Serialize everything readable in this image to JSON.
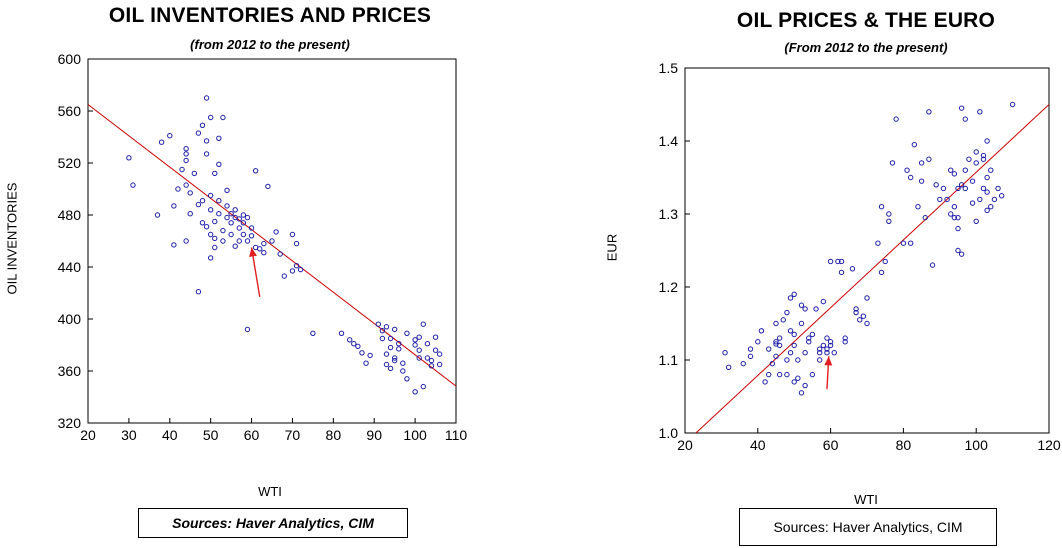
{
  "chart_data": [
    {
      "type": "scatter",
      "title": "OIL INVENTORIES AND PRICES",
      "subtitle": "(from 2012 to the present)",
      "xlabel": "WTI",
      "ylabel": "OIL INVENTORIES",
      "xlim": [
        20,
        110
      ],
      "ylim": [
        320,
        600
      ],
      "xticks": [
        20,
        30,
        40,
        50,
        60,
        70,
        80,
        90,
        100,
        110
      ],
      "yticks": [
        320,
        360,
        400,
        440,
        480,
        520,
        560,
        600
      ],
      "source": "Sources:  Haver Analytics, CIM",
      "marker_color": "#1f1fa8",
      "fit_line_color": "#cc0000",
      "arrow_color": "#e02020",
      "fit_line": [
        [
          20,
          565
        ],
        [
          111,
          346
        ]
      ],
      "arrow": {
        "from": [
          62,
          417
        ],
        "to": [
          60,
          455
        ]
      },
      "points": [
        [
          30,
          524
        ],
        [
          31,
          503
        ],
        [
          37,
          480
        ],
        [
          38,
          536
        ],
        [
          40,
          541
        ],
        [
          41,
          487
        ],
        [
          41,
          457
        ],
        [
          42,
          500
        ],
        [
          43,
          515
        ],
        [
          44,
          522
        ],
        [
          44,
          527
        ],
        [
          44,
          531
        ],
        [
          44,
          503
        ],
        [
          44,
          460
        ],
        [
          45,
          481
        ],
        [
          45,
          497
        ],
        [
          46,
          512
        ],
        [
          47,
          421
        ],
        [
          47,
          543
        ],
        [
          47,
          488
        ],
        [
          48,
          474
        ],
        [
          48,
          491
        ],
        [
          48,
          549
        ],
        [
          49,
          570
        ],
        [
          49,
          527
        ],
        [
          49,
          471
        ],
        [
          49,
          537
        ],
        [
          50,
          555
        ],
        [
          50,
          495
        ],
        [
          50,
          484
        ],
        [
          50,
          465
        ],
        [
          50,
          447
        ],
        [
          51,
          512
        ],
        [
          51,
          455
        ],
        [
          51,
          475
        ],
        [
          51,
          462
        ],
        [
          52,
          519
        ],
        [
          52,
          539
        ],
        [
          52,
          481
        ],
        [
          52,
          491
        ],
        [
          53,
          555
        ],
        [
          53,
          468
        ],
        [
          53,
          460
        ],
        [
          54,
          478
        ],
        [
          54,
          499
        ],
        [
          54,
          487
        ],
        [
          55,
          481
        ],
        [
          55,
          474
        ],
        [
          55,
          465
        ],
        [
          56,
          456
        ],
        [
          56,
          478
        ],
        [
          56,
          484
        ],
        [
          57,
          470
        ],
        [
          57,
          477
        ],
        [
          57,
          460
        ],
        [
          58,
          465
        ],
        [
          58,
          480
        ],
        [
          58,
          474
        ],
        [
          59,
          478
        ],
        [
          59,
          460
        ],
        [
          59,
          392
        ],
        [
          60,
          464
        ],
        [
          60,
          470
        ],
        [
          61,
          514
        ],
        [
          61,
          455
        ],
        [
          62,
          454
        ],
        [
          63,
          458
        ],
        [
          63,
          451
        ],
        [
          64,
          502
        ],
        [
          65,
          460
        ],
        [
          66,
          467
        ],
        [
          67,
          450
        ],
        [
          68,
          433
        ],
        [
          70,
          465
        ],
        [
          70,
          437
        ],
        [
          71,
          458
        ],
        [
          71,
          441
        ],
        [
          72,
          438
        ],
        [
          75,
          389
        ],
        [
          82,
          389
        ],
        [
          84,
          384
        ],
        [
          85,
          381
        ],
        [
          86,
          379
        ],
        [
          87,
          374
        ],
        [
          88,
          366
        ],
        [
          89,
          372
        ],
        [
          91,
          396
        ],
        [
          92,
          391
        ],
        [
          92,
          385
        ],
        [
          93,
          394
        ],
        [
          93,
          373
        ],
        [
          93,
          365
        ],
        [
          94,
          385
        ],
        [
          94,
          362
        ],
        [
          94,
          378
        ],
        [
          95,
          392
        ],
        [
          95,
          370
        ],
        [
          95,
          368
        ],
        [
          96,
          381
        ],
        [
          96,
          377
        ],
        [
          97,
          360
        ],
        [
          97,
          366
        ],
        [
          98,
          389
        ],
        [
          98,
          354
        ],
        [
          100,
          384
        ],
        [
          100,
          380
        ],
        [
          100,
          344
        ],
        [
          101,
          376
        ],
        [
          101,
          370
        ],
        [
          101,
          386
        ],
        [
          102,
          396
        ],
        [
          102,
          348
        ],
        [
          103,
          381
        ],
        [
          103,
          370
        ],
        [
          104,
          364
        ],
        [
          104,
          368
        ],
        [
          105,
          386
        ],
        [
          105,
          376
        ],
        [
          106,
          373
        ],
        [
          106,
          365
        ]
      ]
    },
    {
      "type": "scatter",
      "title": "OIL PRICES & THE EURO",
      "subtitle": "(From 2012 to the present)",
      "xlabel": "WTI",
      "ylabel": "EUR",
      "xlim": [
        20,
        120
      ],
      "ylim": [
        1.0,
        1.5
      ],
      "xticks": [
        20,
        40,
        60,
        80,
        100,
        120
      ],
      "yticks": [
        1.0,
        1.1,
        1.2,
        1.3,
        1.4,
        1.5
      ],
      "source": "Sources:  Haver Analytics, CIM",
      "marker_color": "#1f1fa8",
      "fit_line_color": "#cc0000",
      "arrow_color": "#e02020",
      "fit_line": [
        [
          23,
          1.0
        ],
        [
          120,
          1.45
        ]
      ],
      "arrow": {
        "from": [
          59,
          1.06
        ],
        "to": [
          59.5,
          1.105
        ]
      },
      "points": [
        [
          31,
          1.11
        ],
        [
          32,
          1.09
        ],
        [
          36,
          1.095
        ],
        [
          38,
          1.105
        ],
        [
          38,
          1.115
        ],
        [
          40,
          1.125
        ],
        [
          41,
          1.14
        ],
        [
          42,
          1.07
        ],
        [
          43,
          1.115
        ],
        [
          43,
          1.08
        ],
        [
          44,
          1.095
        ],
        [
          45,
          1.125
        ],
        [
          45,
          1.15
        ],
        [
          45,
          1.105
        ],
        [
          45,
          1.122
        ],
        [
          46,
          1.13
        ],
        [
          46,
          1.08
        ],
        [
          46,
          1.12
        ],
        [
          47,
          1.155
        ],
        [
          48,
          1.165
        ],
        [
          48,
          1.08
        ],
        [
          48,
          1.1
        ],
        [
          49,
          1.14
        ],
        [
          49,
          1.185
        ],
        [
          49,
          1.11
        ],
        [
          50,
          1.07
        ],
        [
          50,
          1.19
        ],
        [
          50,
          1.12
        ],
        [
          50,
          1.135
        ],
        [
          51,
          1.1
        ],
        [
          51,
          1.075
        ],
        [
          52,
          1.055
        ],
        [
          52,
          1.15
        ],
        [
          52,
          1.175
        ],
        [
          53,
          1.11
        ],
        [
          53,
          1.065
        ],
        [
          53,
          1.17
        ],
        [
          54,
          1.125
        ],
        [
          54,
          1.13
        ],
        [
          55,
          1.08
        ],
        [
          55,
          1.135
        ],
        [
          56,
          1.17
        ],
        [
          57,
          1.115
        ],
        [
          57,
          1.1
        ],
        [
          57,
          1.11
        ],
        [
          58,
          1.18
        ],
        [
          58,
          1.12
        ],
        [
          59,
          1.11
        ],
        [
          59,
          1.115
        ],
        [
          59,
          1.13
        ],
        [
          60,
          1.12
        ],
        [
          60,
          1.125
        ],
        [
          61,
          1.11
        ],
        [
          60,
          1.235
        ],
        [
          62,
          1.235
        ],
        [
          63,
          1.22
        ],
        [
          63,
          1.235
        ],
        [
          64,
          1.125
        ],
        [
          64,
          1.13
        ],
        [
          66,
          1.225
        ],
        [
          67,
          1.165
        ],
        [
          67,
          1.17
        ],
        [
          68,
          1.155
        ],
        [
          69,
          1.16
        ],
        [
          70,
          1.15
        ],
        [
          70,
          1.185
        ],
        [
          73,
          1.26
        ],
        [
          74,
          1.31
        ],
        [
          74,
          1.22
        ],
        [
          75,
          1.235
        ],
        [
          76,
          1.29
        ],
        [
          76,
          1.3
        ],
        [
          77,
          1.37
        ],
        [
          78,
          1.43
        ],
        [
          80,
          1.26
        ],
        [
          81,
          1.36
        ],
        [
          82,
          1.35
        ],
        [
          82,
          1.26
        ],
        [
          83,
          1.395
        ],
        [
          84,
          1.31
        ],
        [
          85,
          1.37
        ],
        [
          85,
          1.345
        ],
        [
          86,
          1.295
        ],
        [
          87,
          1.375
        ],
        [
          87,
          1.44
        ],
        [
          88,
          1.23
        ],
        [
          89,
          1.34
        ],
        [
          90,
          1.32
        ],
        [
          91,
          1.335
        ],
        [
          92,
          1.32
        ],
        [
          93,
          1.3
        ],
        [
          93,
          1.36
        ],
        [
          94,
          1.295
        ],
        [
          94,
          1.31
        ],
        [
          94,
          1.355
        ],
        [
          95,
          1.28
        ],
        [
          95,
          1.295
        ],
        [
          95,
          1.335
        ],
        [
          96,
          1.34
        ],
        [
          96,
          1.445
        ],
        [
          97,
          1.43
        ],
        [
          97,
          1.335
        ],
        [
          97,
          1.36
        ],
        [
          98,
          1.375
        ],
        [
          99,
          1.345
        ],
        [
          99,
          1.315
        ],
        [
          100,
          1.29
        ],
        [
          100,
          1.37
        ],
        [
          100,
          1.385
        ],
        [
          101,
          1.44
        ],
        [
          101,
          1.32
        ],
        [
          102,
          1.38
        ],
        [
          102,
          1.375
        ],
        [
          102,
          1.335
        ],
        [
          103,
          1.35
        ],
        [
          103,
          1.4
        ],
        [
          103,
          1.305
        ],
        [
          104,
          1.31
        ],
        [
          104,
          1.36
        ],
        [
          105,
          1.32
        ],
        [
          106,
          1.335
        ],
        [
          107,
          1.325
        ],
        [
          110,
          1.45
        ],
        [
          95,
          1.25
        ],
        [
          96,
          1.245
        ],
        [
          103,
          1.33
        ]
      ]
    }
  ]
}
